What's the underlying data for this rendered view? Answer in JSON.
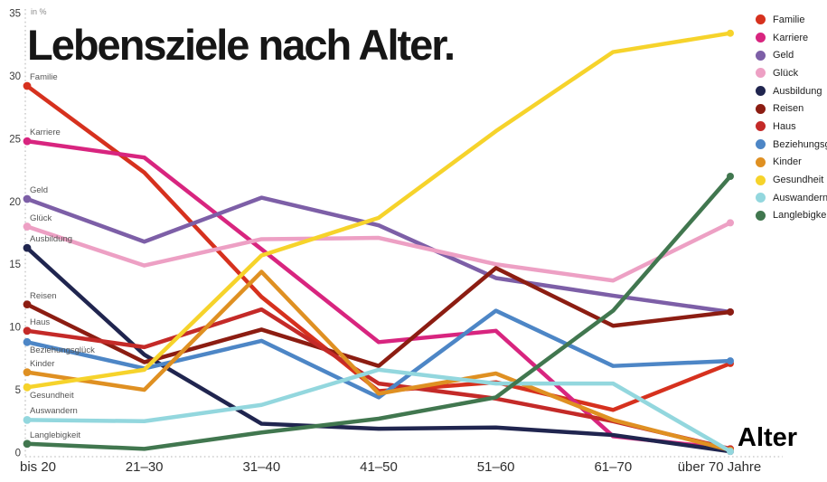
{
  "title": "Lebensziele nach Alter.",
  "y_axis_unit_label": "in %",
  "x_axis_title": "Alter",
  "chart_data": {
    "type": "line",
    "title": "Lebensziele nach Alter.",
    "xlabel": "Alter",
    "ylabel": "in %",
    "ylim": [
      0,
      35
    ],
    "y_ticks": [
      0,
      5,
      10,
      15,
      20,
      25,
      30,
      35
    ],
    "grid": "dotted y-axis and dotted zero baseline only",
    "legend_position": "top-right",
    "categories": [
      "bis 20",
      "21–30",
      "31–40",
      "41–50",
      "51–60",
      "61–70",
      "über 70 Jahre"
    ],
    "series": [
      {
        "name": "Familie",
        "color": "#d6311e",
        "values": [
          29.2,
          22.3,
          12.4,
          4.9,
          5.6,
          3.4,
          7.1
        ]
      },
      {
        "name": "Karriere",
        "color": "#d8257f",
        "values": [
          24.8,
          23.5,
          16.2,
          8.8,
          9.7,
          1.3,
          0.3
        ]
      },
      {
        "name": "Geld",
        "color": "#7d5fa7",
        "values": [
          20.2,
          16.8,
          20.3,
          18.1,
          13.9,
          12.5,
          11.2
        ]
      },
      {
        "name": "Glück",
        "color": "#eda0c4",
        "values": [
          18.0,
          14.9,
          17.0,
          17.1,
          15.0,
          13.7,
          18.3
        ]
      },
      {
        "name": "Ausbildung",
        "color": "#20254f",
        "values": [
          16.3,
          7.8,
          2.3,
          1.9,
          2.0,
          1.4,
          0.1
        ]
      },
      {
        "name": "Reisen",
        "color": "#8c1d12",
        "values": [
          11.8,
          7.2,
          9.8,
          6.9,
          14.7,
          10.1,
          11.2
        ]
      },
      {
        "name": "Haus",
        "color": "#c42a28",
        "values": [
          9.7,
          8.4,
          11.4,
          5.5,
          4.3,
          2.5,
          0.3
        ]
      },
      {
        "name": "Beziehungsglück",
        "color": "#4d86c6",
        "values": [
          8.8,
          6.7,
          8.9,
          4.4,
          11.3,
          6.9,
          7.3
        ],
        "label_below": true
      },
      {
        "name": "Kinder",
        "color": "#df9022",
        "values": [
          6.4,
          5.0,
          14.4,
          4.7,
          6.3,
          2.6,
          0.2
        ]
      },
      {
        "name": "Gesundheit",
        "color": "#f6d32b",
        "values": [
          5.2,
          6.6,
          15.7,
          18.7,
          25.6,
          31.9,
          33.4
        ],
        "label_below": true
      },
      {
        "name": "Auswandern",
        "color": "#93d7de",
        "values": [
          2.6,
          2.5,
          3.8,
          6.6,
          5.5,
          5.5,
          0.1
        ]
      },
      {
        "name": "Langlebigkeit",
        "color": "#41774f",
        "values": [
          0.7,
          0.3,
          1.6,
          2.7,
          4.4,
          11.3,
          22.0
        ]
      }
    ]
  }
}
